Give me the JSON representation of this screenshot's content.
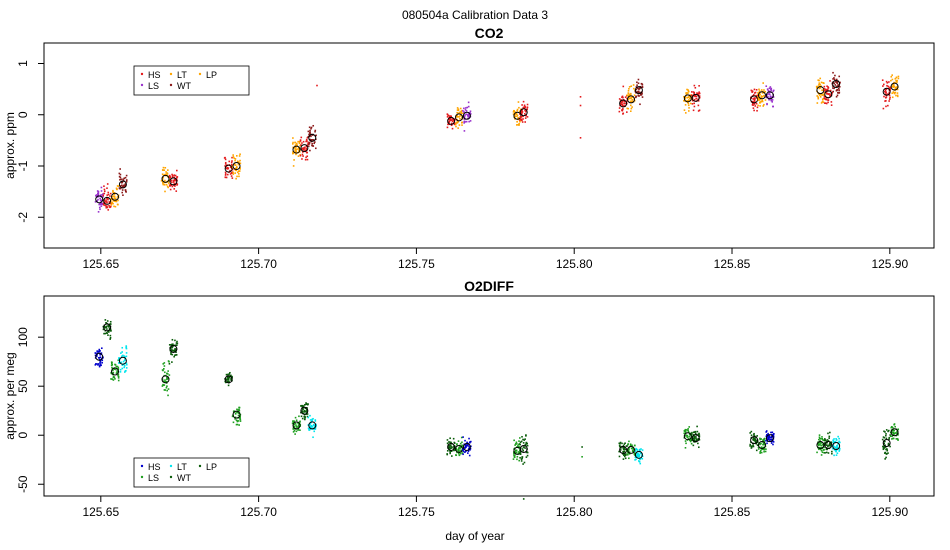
{
  "suptitle": "080504a   Calibration Data 3",
  "xlabel": "day of year",
  "colors": {
    "HS": "#e41a1c",
    "LS": "#9932cc",
    "LT": "#ffa500",
    "WT": "#8b1a1a",
    "LP": "#ffa500",
    "O2_A": "#0000cd",
    "O2_B": "#1f9f1f",
    "O2_C": "#00e5ee",
    "O2_D": "#0a5c0a",
    "mean_marker": "#000000",
    "axis": "#000000"
  },
  "chart_data": [
    {
      "type": "scatter",
      "title": "CO2",
      "ylabel": "approx. ppm",
      "xlim": [
        125.632,
        125.914
      ],
      "ylim": [
        -2.6,
        1.4
      ],
      "xticks": [
        125.65,
        125.7,
        125.75,
        125.8,
        125.85,
        125.9
      ],
      "xtick_labels": [
        "125.65",
        "125.70",
        "125.75",
        "125.80",
        "125.85",
        "125.90"
      ],
      "yticks": [
        -2,
        -1,
        0,
        1
      ],
      "ytick_labels": [
        "-2",
        "-1",
        "0",
        "1"
      ],
      "legend": {
        "placement": "top-left",
        "entries": [
          {
            "label": "HS",
            "color_key": "HS"
          },
          {
            "label": "LS",
            "color_key": "LS"
          },
          {
            "label": "LT",
            "color_key": "LT"
          },
          {
            "label": "WT",
            "color_key": "WT"
          },
          {
            "label": "LP",
            "color_key": "LP"
          }
        ]
      },
      "clusters": [
        {
          "x": 125.6495,
          "mean": -1.65,
          "spread": 0.2,
          "color_key": "LS"
        },
        {
          "x": 125.652,
          "mean": -1.68,
          "spread": 0.22,
          "color_key": "HS"
        },
        {
          "x": 125.6545,
          "mean": -1.6,
          "spread": 0.2,
          "color_key": "LT"
        },
        {
          "x": 125.657,
          "mean": -1.36,
          "spread": 0.2,
          "color_key": "WT"
        },
        {
          "x": 125.6705,
          "mean": -1.25,
          "spread": 0.2,
          "color_key": "LT"
        },
        {
          "x": 125.673,
          "mean": -1.3,
          "spread": 0.15,
          "color_key": "HS"
        },
        {
          "x": 125.6905,
          "mean": -1.05,
          "spread": 0.2,
          "color_key": "HS"
        },
        {
          "x": 125.693,
          "mean": -1.0,
          "spread": 0.2,
          "color_key": "LT"
        },
        {
          "x": 125.712,
          "mean": -0.68,
          "spread": 0.2,
          "color_key": "LT"
        },
        {
          "x": 125.7145,
          "mean": -0.65,
          "spread": 0.2,
          "color_key": "HS"
        },
        {
          "x": 125.717,
          "mean": -0.45,
          "spread": 0.2,
          "color_key": "WT"
        },
        {
          "x": 125.761,
          "mean": -0.12,
          "spread": 0.15,
          "color_key": "HS"
        },
        {
          "x": 125.7635,
          "mean": -0.05,
          "spread": 0.2,
          "color_key": "LT"
        },
        {
          "x": 125.766,
          "mean": -0.02,
          "spread": 0.2,
          "color_key": "LS"
        },
        {
          "x": 125.782,
          "mean": -0.02,
          "spread": 0.2,
          "color_key": "LT"
        },
        {
          "x": 125.784,
          "mean": 0.05,
          "spread": 0.2,
          "color_key": "HS"
        },
        {
          "x": 125.8155,
          "mean": 0.22,
          "spread": 0.2,
          "color_key": "HS"
        },
        {
          "x": 125.818,
          "mean": 0.3,
          "spread": 0.22,
          "color_key": "LT"
        },
        {
          "x": 125.8205,
          "mean": 0.48,
          "spread": 0.2,
          "color_key": "WT"
        },
        {
          "x": 125.836,
          "mean": 0.32,
          "spread": 0.22,
          "color_key": "LT"
        },
        {
          "x": 125.8385,
          "mean": 0.33,
          "spread": 0.2,
          "color_key": "HS"
        },
        {
          "x": 125.857,
          "mean": 0.3,
          "spread": 0.2,
          "color_key": "HS"
        },
        {
          "x": 125.8595,
          "mean": 0.38,
          "spread": 0.2,
          "color_key": "LT"
        },
        {
          "x": 125.862,
          "mean": 0.38,
          "spread": 0.2,
          "color_key": "LS"
        },
        {
          "x": 125.878,
          "mean": 0.48,
          "spread": 0.22,
          "color_key": "LT"
        },
        {
          "x": 125.8805,
          "mean": 0.4,
          "spread": 0.2,
          "color_key": "HS"
        },
        {
          "x": 125.883,
          "mean": 0.6,
          "spread": 0.22,
          "color_key": "WT"
        },
        {
          "x": 125.899,
          "mean": 0.45,
          "spread": 0.25,
          "color_key": "HS"
        },
        {
          "x": 125.9015,
          "mean": 0.55,
          "spread": 0.2,
          "color_key": "LT"
        }
      ],
      "stray_points": [
        {
          "x": 125.802,
          "y": 0.35,
          "color_key": "HS"
        },
        {
          "x": 125.802,
          "y": 0.18,
          "color_key": "HS"
        },
        {
          "x": 125.802,
          "y": -0.45,
          "color_key": "HS"
        },
        {
          "x": 125.7185,
          "y": 0.57,
          "color_key": "HS"
        }
      ]
    },
    {
      "type": "scatter",
      "title": "O2DIFF",
      "ylabel": "approx. per meg",
      "xlim": [
        125.632,
        125.914
      ],
      "ylim": [
        -62,
        142
      ],
      "xticks": [
        125.65,
        125.7,
        125.75,
        125.8,
        125.85,
        125.9
      ],
      "xtick_labels": [
        "125.65",
        "125.70",
        "125.75",
        "125.80",
        "125.85",
        "125.90"
      ],
      "yticks": [
        -50,
        0,
        50,
        100
      ],
      "ytick_labels": [
        "-50",
        "0",
        "50",
        "100"
      ],
      "legend": {
        "placement": "bottom-left",
        "entries": [
          {
            "label": "HS",
            "color_key": "O2_A"
          },
          {
            "label": "LS",
            "color_key": "O2_B"
          },
          {
            "label": "LT",
            "color_key": "O2_C"
          },
          {
            "label": "WT",
            "color_key": "O2_D"
          },
          {
            "label": "LP",
            "color_key": "O2_D"
          }
        ]
      },
      "clusters": [
        {
          "x": 125.6495,
          "mean": 80,
          "spread": 10,
          "color_key": "O2_A"
        },
        {
          "x": 125.652,
          "mean": 110,
          "spread": 9,
          "color_key": "O2_D"
        },
        {
          "x": 125.6545,
          "mean": 65,
          "spread": 10,
          "color_key": "O2_B"
        },
        {
          "x": 125.657,
          "mean": 76,
          "spread": 12,
          "color_key": "O2_C"
        },
        {
          "x": 125.6705,
          "mean": 57,
          "spread": 13,
          "color_key": "O2_B"
        },
        {
          "x": 125.673,
          "mean": 88,
          "spread": 9,
          "color_key": "O2_D"
        },
        {
          "x": 125.6905,
          "mean": 57,
          "spread": 5,
          "color_key": "O2_D"
        },
        {
          "x": 125.693,
          "mean": 21,
          "spread": 8,
          "color_key": "O2_B"
        },
        {
          "x": 125.712,
          "mean": 10,
          "spread": 7,
          "color_key": "O2_B"
        },
        {
          "x": 125.7145,
          "mean": 25,
          "spread": 9,
          "color_key": "O2_D"
        },
        {
          "x": 125.717,
          "mean": 10,
          "spread": 8,
          "color_key": "O2_C"
        },
        {
          "x": 125.761,
          "mean": -12,
          "spread": 9,
          "color_key": "O2_D"
        },
        {
          "x": 125.7635,
          "mean": -14,
          "spread": 9,
          "color_key": "O2_B"
        },
        {
          "x": 125.766,
          "mean": -12,
          "spread": 7,
          "color_key": "O2_A"
        },
        {
          "x": 125.782,
          "mean": -16,
          "spread": 10,
          "color_key": "O2_B"
        },
        {
          "x": 125.784,
          "mean": -14,
          "spread": 12,
          "color_key": "O2_D"
        },
        {
          "x": 125.8155,
          "mean": -15,
          "spread": 8,
          "color_key": "O2_D"
        },
        {
          "x": 125.818,
          "mean": -15,
          "spread": 10,
          "color_key": "O2_B"
        },
        {
          "x": 125.8205,
          "mean": -20,
          "spread": 8,
          "color_key": "O2_C"
        },
        {
          "x": 125.836,
          "mean": -1,
          "spread": 8,
          "color_key": "O2_B"
        },
        {
          "x": 125.8385,
          "mean": -3,
          "spread": 8,
          "color_key": "O2_D"
        },
        {
          "x": 125.857,
          "mean": -5,
          "spread": 9,
          "color_key": "O2_D"
        },
        {
          "x": 125.8595,
          "mean": -10,
          "spread": 8,
          "color_key": "O2_B"
        },
        {
          "x": 125.862,
          "mean": -3,
          "spread": 6,
          "color_key": "O2_A"
        },
        {
          "x": 125.878,
          "mean": -10,
          "spread": 9,
          "color_key": "O2_B"
        },
        {
          "x": 125.8805,
          "mean": -10,
          "spread": 9,
          "color_key": "O2_D"
        },
        {
          "x": 125.883,
          "mean": -11,
          "spread": 8,
          "color_key": "O2_C"
        },
        {
          "x": 125.899,
          "mean": -8,
          "spread": 14,
          "color_key": "O2_D"
        },
        {
          "x": 125.9015,
          "mean": 3,
          "spread": 8,
          "color_key": "O2_B"
        }
      ],
      "stray_points": [
        {
          "x": 125.8025,
          "y": -12,
          "color_key": "O2_D"
        },
        {
          "x": 125.8025,
          "y": -22,
          "color_key": "O2_B"
        },
        {
          "x": 125.784,
          "y": -65,
          "color_key": "O2_D"
        }
      ]
    }
  ]
}
